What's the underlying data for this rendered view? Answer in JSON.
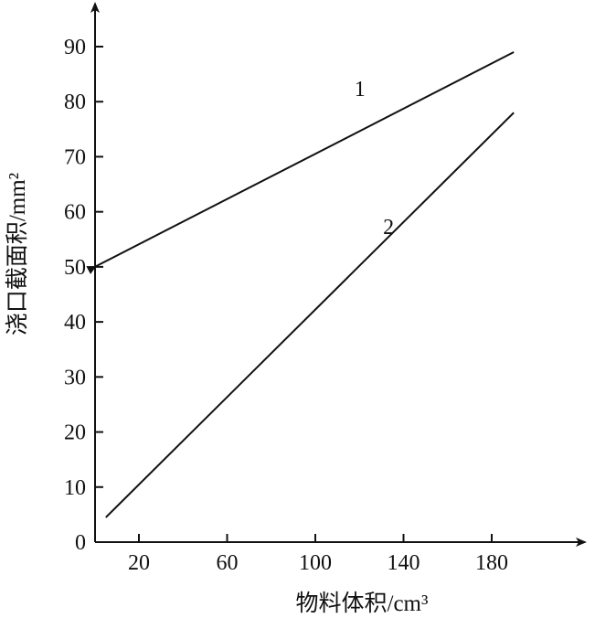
{
  "chart_data": {
    "type": "line",
    "title": "",
    "xlabel": "物料体积/cm³",
    "ylabel": "浇口截面积/mm²",
    "xlim": [
      0,
      225
    ],
    "ylim": [
      0,
      96
    ],
    "x_ticks": [
      20,
      60,
      100,
      140,
      180
    ],
    "y_ticks": [
      0,
      10,
      20,
      30,
      40,
      50,
      60,
      70,
      80,
      90
    ],
    "grid": false,
    "legend": "none",
    "series": [
      {
        "name": "1",
        "x": [
          0,
          190
        ],
        "y": [
          50,
          89
        ]
      },
      {
        "name": "2",
        "x": [
          5,
          190
        ],
        "y": [
          4.5,
          78
        ]
      }
    ]
  }
}
